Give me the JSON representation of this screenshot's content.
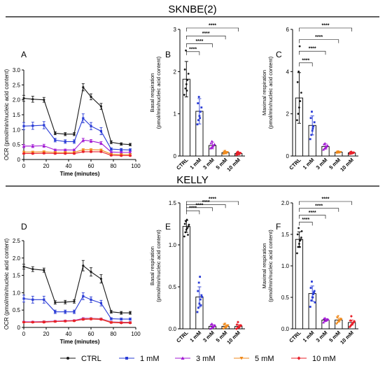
{
  "figure": {
    "sections": [
      {
        "title": "SKNBE(2)"
      },
      {
        "title": "KELLY"
      }
    ],
    "legend": [
      {
        "label": "CTRL",
        "color": "#1a1a1a",
        "marker": "circle"
      },
      {
        "label": "1 mM",
        "color": "#2a3cd6",
        "marker": "square"
      },
      {
        "label": "3 mM",
        "color": "#a21ad4",
        "marker": "triangle"
      },
      {
        "label": "5 mM",
        "color": "#f08a1c",
        "marker": "triangle-down"
      },
      {
        "label": "10 mM",
        "color": "#e8202a",
        "marker": "diamond"
      }
    ]
  },
  "chart_data": [
    {
      "panel": "A",
      "type": "line",
      "xlabel": "Time (minutes)",
      "ylabel": "OCR (pmol/min/nucleic acid content)",
      "xlim": [
        0,
        100
      ],
      "ylim": [
        0,
        3
      ],
      "xticks": [
        0,
        20,
        40,
        60,
        80,
        100
      ],
      "yticks": [
        0,
        0.5,
        1.0,
        1.5,
        2.0,
        2.5,
        3.0
      ],
      "ytick_labels": [
        "0",
        "0.5",
        "1.0",
        "1.5",
        "2.0",
        "2.5",
        "3.0"
      ],
      "x": [
        0,
        8,
        18,
        28,
        37,
        45,
        53,
        60,
        69,
        78,
        87,
        95
      ],
      "series": [
        {
          "name": "CTRL",
          "color": "#1a1a1a",
          "values": [
            2.05,
            2.02,
            2.0,
            0.88,
            0.85,
            0.85,
            2.42,
            2.1,
            1.78,
            0.58,
            0.52,
            0.5
          ],
          "err": [
            0.1,
            0.1,
            0.08,
            0.05,
            0.05,
            0.05,
            0.12,
            0.1,
            0.1,
            0.05,
            0.04,
            0.04
          ]
        },
        {
          "name": "1 mM",
          "color": "#2a3cd6",
          "values": [
            1.12,
            1.13,
            1.15,
            0.65,
            0.6,
            0.6,
            1.38,
            1.12,
            0.95,
            0.35,
            0.33,
            0.32
          ],
          "err": [
            0.12,
            0.12,
            0.12,
            0.06,
            0.06,
            0.06,
            0.15,
            0.12,
            0.12,
            0.04,
            0.04,
            0.04
          ]
        },
        {
          "name": "3 mM",
          "color": "#a21ad4",
          "values": [
            0.45,
            0.45,
            0.46,
            0.32,
            0.32,
            0.32,
            0.65,
            0.62,
            0.55,
            0.25,
            0.24,
            0.24
          ],
          "err": [
            0.05,
            0.05,
            0.05,
            0.03,
            0.03,
            0.03,
            0.06,
            0.05,
            0.05,
            0.03,
            0.03,
            0.03
          ]
        },
        {
          "name": "5 mM",
          "color": "#f08a1c",
          "values": [
            0.25,
            0.25,
            0.26,
            0.24,
            0.24,
            0.24,
            0.33,
            0.33,
            0.32,
            0.18,
            0.17,
            0.17
          ],
          "err": [
            0.03,
            0.03,
            0.03,
            0.02,
            0.02,
            0.02,
            0.03,
            0.03,
            0.03,
            0.02,
            0.02,
            0.02
          ]
        },
        {
          "name": "10 mM",
          "color": "#e8202a",
          "values": [
            0.2,
            0.2,
            0.21,
            0.2,
            0.2,
            0.2,
            0.26,
            0.26,
            0.26,
            0.14,
            0.13,
            0.13
          ],
          "err": [
            0.02,
            0.02,
            0.02,
            0.02,
            0.02,
            0.02,
            0.02,
            0.02,
            0.02,
            0.02,
            0.02,
            0.02
          ]
        }
      ]
    },
    {
      "panel": "B",
      "type": "bar",
      "ylabel": "Basal respiration (pmol/min/nucleic acid content)",
      "ylim": [
        0,
        3
      ],
      "yticks": [
        0,
        1,
        2,
        3
      ],
      "categories": [
        "CTRL",
        "1 mM",
        "3 mM",
        "5 mM",
        "10 mM"
      ],
      "colors": [
        "#1a1a1a",
        "#2a3cd6",
        "#a21ad4",
        "#f08a1c",
        "#e8202a"
      ],
      "values": [
        1.82,
        1.06,
        0.25,
        0.08,
        0.06
      ],
      "err": [
        0.42,
        0.3,
        0.08,
        0.03,
        0.03
      ],
      "points": [
        [
          1.45,
          1.6,
          1.7,
          1.8,
          1.95,
          2.05,
          2.5,
          1.55
        ],
        [
          0.75,
          0.85,
          0.95,
          1.05,
          1.15,
          1.25,
          1.4,
          0.9
        ],
        [
          0.18,
          0.2,
          0.22,
          0.25,
          0.28,
          0.3,
          0.35,
          0.22
        ],
        [
          0.05,
          0.06,
          0.07,
          0.08,
          0.09,
          0.1,
          0.12,
          0.07
        ],
        [
          0.03,
          0.04,
          0.05,
          0.06,
          0.07,
          0.08,
          0.1,
          0.05
        ]
      ],
      "significance": [
        {
          "from": 0,
          "to": 1,
          "label": "****"
        },
        {
          "from": 0,
          "to": 2,
          "label": "****"
        },
        {
          "from": 0,
          "to": 3,
          "label": "****"
        },
        {
          "from": 0,
          "to": 4,
          "label": "****"
        }
      ]
    },
    {
      "panel": "C",
      "type": "bar",
      "ylabel": "Maximal respiration (pmol/min/nucleic acid content)",
      "ylim": [
        0,
        6
      ],
      "yticks": [
        0,
        2,
        4,
        6
      ],
      "categories": [
        "CTRL",
        "1 mM",
        "3 mM",
        "5 mM",
        "10 mM"
      ],
      "colors": [
        "#1a1a1a",
        "#2a3cd6",
        "#a21ad4",
        "#f08a1c",
        "#e8202a"
      ],
      "values": [
        2.75,
        1.45,
        0.45,
        0.18,
        0.15
      ],
      "err": [
        1.2,
        0.45,
        0.12,
        0.04,
        0.04
      ],
      "points": [
        [
          1.7,
          2.0,
          2.3,
          2.6,
          3.0,
          3.5,
          4.0,
          5.2
        ],
        [
          0.8,
          1.0,
          1.2,
          1.4,
          1.6,
          1.8,
          2.1,
          1.3
        ],
        [
          0.3,
          0.35,
          0.4,
          0.45,
          0.5,
          0.55,
          0.6,
          0.42
        ],
        [
          0.14,
          0.16,
          0.17,
          0.18,
          0.19,
          0.2,
          0.22,
          0.17
        ],
        [
          0.1,
          0.12,
          0.13,
          0.15,
          0.16,
          0.18,
          0.2,
          0.14
        ]
      ],
      "significance": [
        {
          "from": 0,
          "to": 1,
          "label": "****"
        },
        {
          "from": 0,
          "to": 2,
          "label": "****"
        },
        {
          "from": 0,
          "to": 3,
          "label": "****"
        },
        {
          "from": 0,
          "to": 4,
          "label": "****"
        }
      ]
    },
    {
      "panel": "D",
      "type": "line",
      "xlabel": "Time (minutes)",
      "ylabel": "OCR (pmol/min/nucleic acid content)",
      "xlim": [
        0,
        100
      ],
      "ylim": [
        0,
        2.5
      ],
      "xticks": [
        0,
        20,
        40,
        60,
        80,
        100
      ],
      "yticks": [
        0,
        0.5,
        1.0,
        1.5,
        2.0,
        2.5
      ],
      "ytick_labels": [
        "0",
        "0.5",
        "1.0",
        "1.5",
        "2.0",
        "2.5"
      ],
      "x": [
        0,
        8,
        18,
        28,
        37,
        45,
        53,
        60,
        69,
        78,
        87,
        95
      ],
      "series": [
        {
          "name": "CTRL",
          "color": "#1a1a1a",
          "values": [
            1.75,
            1.68,
            1.65,
            0.72,
            0.73,
            0.75,
            1.78,
            1.6,
            1.4,
            0.45,
            0.42,
            0.42
          ],
          "err": [
            0.07,
            0.07,
            0.06,
            0.05,
            0.05,
            0.05,
            0.15,
            0.12,
            0.12,
            0.04,
            0.04,
            0.04
          ]
        },
        {
          "name": "1 mM",
          "color": "#2a3cd6",
          "values": [
            0.83,
            0.8,
            0.8,
            0.45,
            0.45,
            0.45,
            0.9,
            0.8,
            0.7,
            0.25,
            0.24,
            0.24
          ],
          "err": [
            0.1,
            0.1,
            0.1,
            0.05,
            0.05,
            0.05,
            0.1,
            0.08,
            0.08,
            0.03,
            0.03,
            0.03
          ]
        },
        {
          "name": "3 mM",
          "color": "#a21ad4",
          "values": [
            0.16,
            0.16,
            0.17,
            0.18,
            0.19,
            0.2,
            0.26,
            0.26,
            0.25,
            0.16,
            0.15,
            0.15
          ],
          "err": [
            0.02,
            0.02,
            0.02,
            0.02,
            0.02,
            0.02,
            0.02,
            0.02,
            0.02,
            0.02,
            0.02,
            0.02
          ]
        },
        {
          "name": "5 mM",
          "color": "#f08a1c",
          "values": [
            0.15,
            0.15,
            0.16,
            0.17,
            0.18,
            0.19,
            0.24,
            0.25,
            0.24,
            0.15,
            0.14,
            0.14
          ],
          "err": [
            0.02,
            0.02,
            0.02,
            0.02,
            0.02,
            0.02,
            0.02,
            0.02,
            0.02,
            0.02,
            0.02,
            0.02
          ]
        },
        {
          "name": "10 mM",
          "color": "#e8202a",
          "values": [
            0.15,
            0.15,
            0.15,
            0.17,
            0.18,
            0.19,
            0.23,
            0.24,
            0.23,
            0.14,
            0.13,
            0.13
          ],
          "err": [
            0.02,
            0.02,
            0.02,
            0.02,
            0.02,
            0.02,
            0.02,
            0.02,
            0.02,
            0.02,
            0.02,
            0.02
          ]
        }
      ]
    },
    {
      "panel": "E",
      "type": "bar",
      "ylabel": "Basal respiration (pmol/min/nucleic acid content)",
      "ylim": [
        0,
        1.5
      ],
      "yticks": [
        0,
        0.5,
        1.0,
        1.5
      ],
      "ytick_labels": [
        "0.0",
        "0.5",
        "1.0",
        "1.5"
      ],
      "categories": [
        "CTRL",
        "1 mM",
        "3 mM",
        "5 mM",
        "10 mM"
      ],
      "colors": [
        "#1a1a1a",
        "#2a3cd6",
        "#a21ad4",
        "#f08a1c",
        "#e8202a"
      ],
      "values": [
        1.22,
        0.38,
        0.03,
        0.03,
        0.03
      ],
      "err": [
        0.07,
        0.12,
        0.02,
        0.02,
        0.02
      ],
      "points": [
        [
          1.1,
          1.15,
          1.18,
          1.2,
          1.22,
          1.25,
          1.28,
          1.3,
          1.12,
          1.24
        ],
        [
          0.2,
          0.25,
          0.3,
          0.35,
          0.4,
          0.45,
          0.55,
          0.62,
          0.28,
          0.38
        ],
        [
          0.0,
          0.01,
          0.02,
          0.03,
          0.04,
          0.05,
          0.06,
          0.02,
          0.03,
          0.04
        ],
        [
          0.0,
          0.01,
          0.02,
          0.03,
          0.04,
          0.05,
          0.06,
          0.02,
          0.03,
          0.04
        ],
        [
          0.0,
          0.01,
          0.02,
          0.03,
          0.04,
          0.05,
          0.08,
          0.02,
          0.03,
          0.04
        ]
      ],
      "significance": [
        {
          "from": 0,
          "to": 1,
          "label": "****"
        },
        {
          "from": 0,
          "to": 2,
          "label": "****"
        },
        {
          "from": 0,
          "to": 3,
          "label": "****"
        },
        {
          "from": 0,
          "to": 4,
          "label": "****"
        }
      ]
    },
    {
      "panel": "F",
      "type": "bar",
      "ylabel": "Maximal respiration (pmol/min/nucleic acid content)",
      "ylim": [
        0,
        2.0
      ],
      "yticks": [
        0,
        0.5,
        1.0,
        1.5,
        2.0
      ],
      "ytick_labels": [
        "0.0",
        "0.5",
        "1.0",
        "1.5",
        "2.0"
      ],
      "categories": [
        "CTRL",
        "1 mM",
        "3 mM",
        "5 mM",
        "10 mM"
      ],
      "colors": [
        "#1a1a1a",
        "#2a3cd6",
        "#a21ad4",
        "#f08a1c",
        "#e8202a"
      ],
      "values": [
        1.42,
        0.56,
        0.14,
        0.14,
        0.1
      ],
      "err": [
        0.12,
        0.12,
        0.02,
        0.03,
        0.04
      ],
      "points": [
        [
          1.2,
          1.3,
          1.35,
          1.4,
          1.45,
          1.5,
          1.6,
          1.3,
          1.42,
          1.55
        ],
        [
          0.35,
          0.45,
          0.5,
          0.55,
          0.6,
          0.65,
          0.75,
          0.5,
          0.58,
          0.42
        ],
        [
          0.1,
          0.12,
          0.13,
          0.14,
          0.15,
          0.16,
          0.17,
          0.13,
          0.14,
          0.15
        ],
        [
          0.08,
          0.1,
          0.12,
          0.14,
          0.16,
          0.18,
          0.2,
          0.12,
          0.14,
          0.15
        ],
        [
          0.03,
          0.05,
          0.07,
          0.09,
          0.11,
          0.13,
          0.2,
          0.08,
          0.1,
          0.12
        ]
      ],
      "significance": [
        {
          "from": 0,
          "to": 1,
          "label": "****"
        },
        {
          "from": 0,
          "to": 2,
          "label": "****"
        },
        {
          "from": 0,
          "to": 3,
          "label": "****"
        },
        {
          "from": 0,
          "to": 4,
          "label": "****"
        }
      ]
    }
  ]
}
